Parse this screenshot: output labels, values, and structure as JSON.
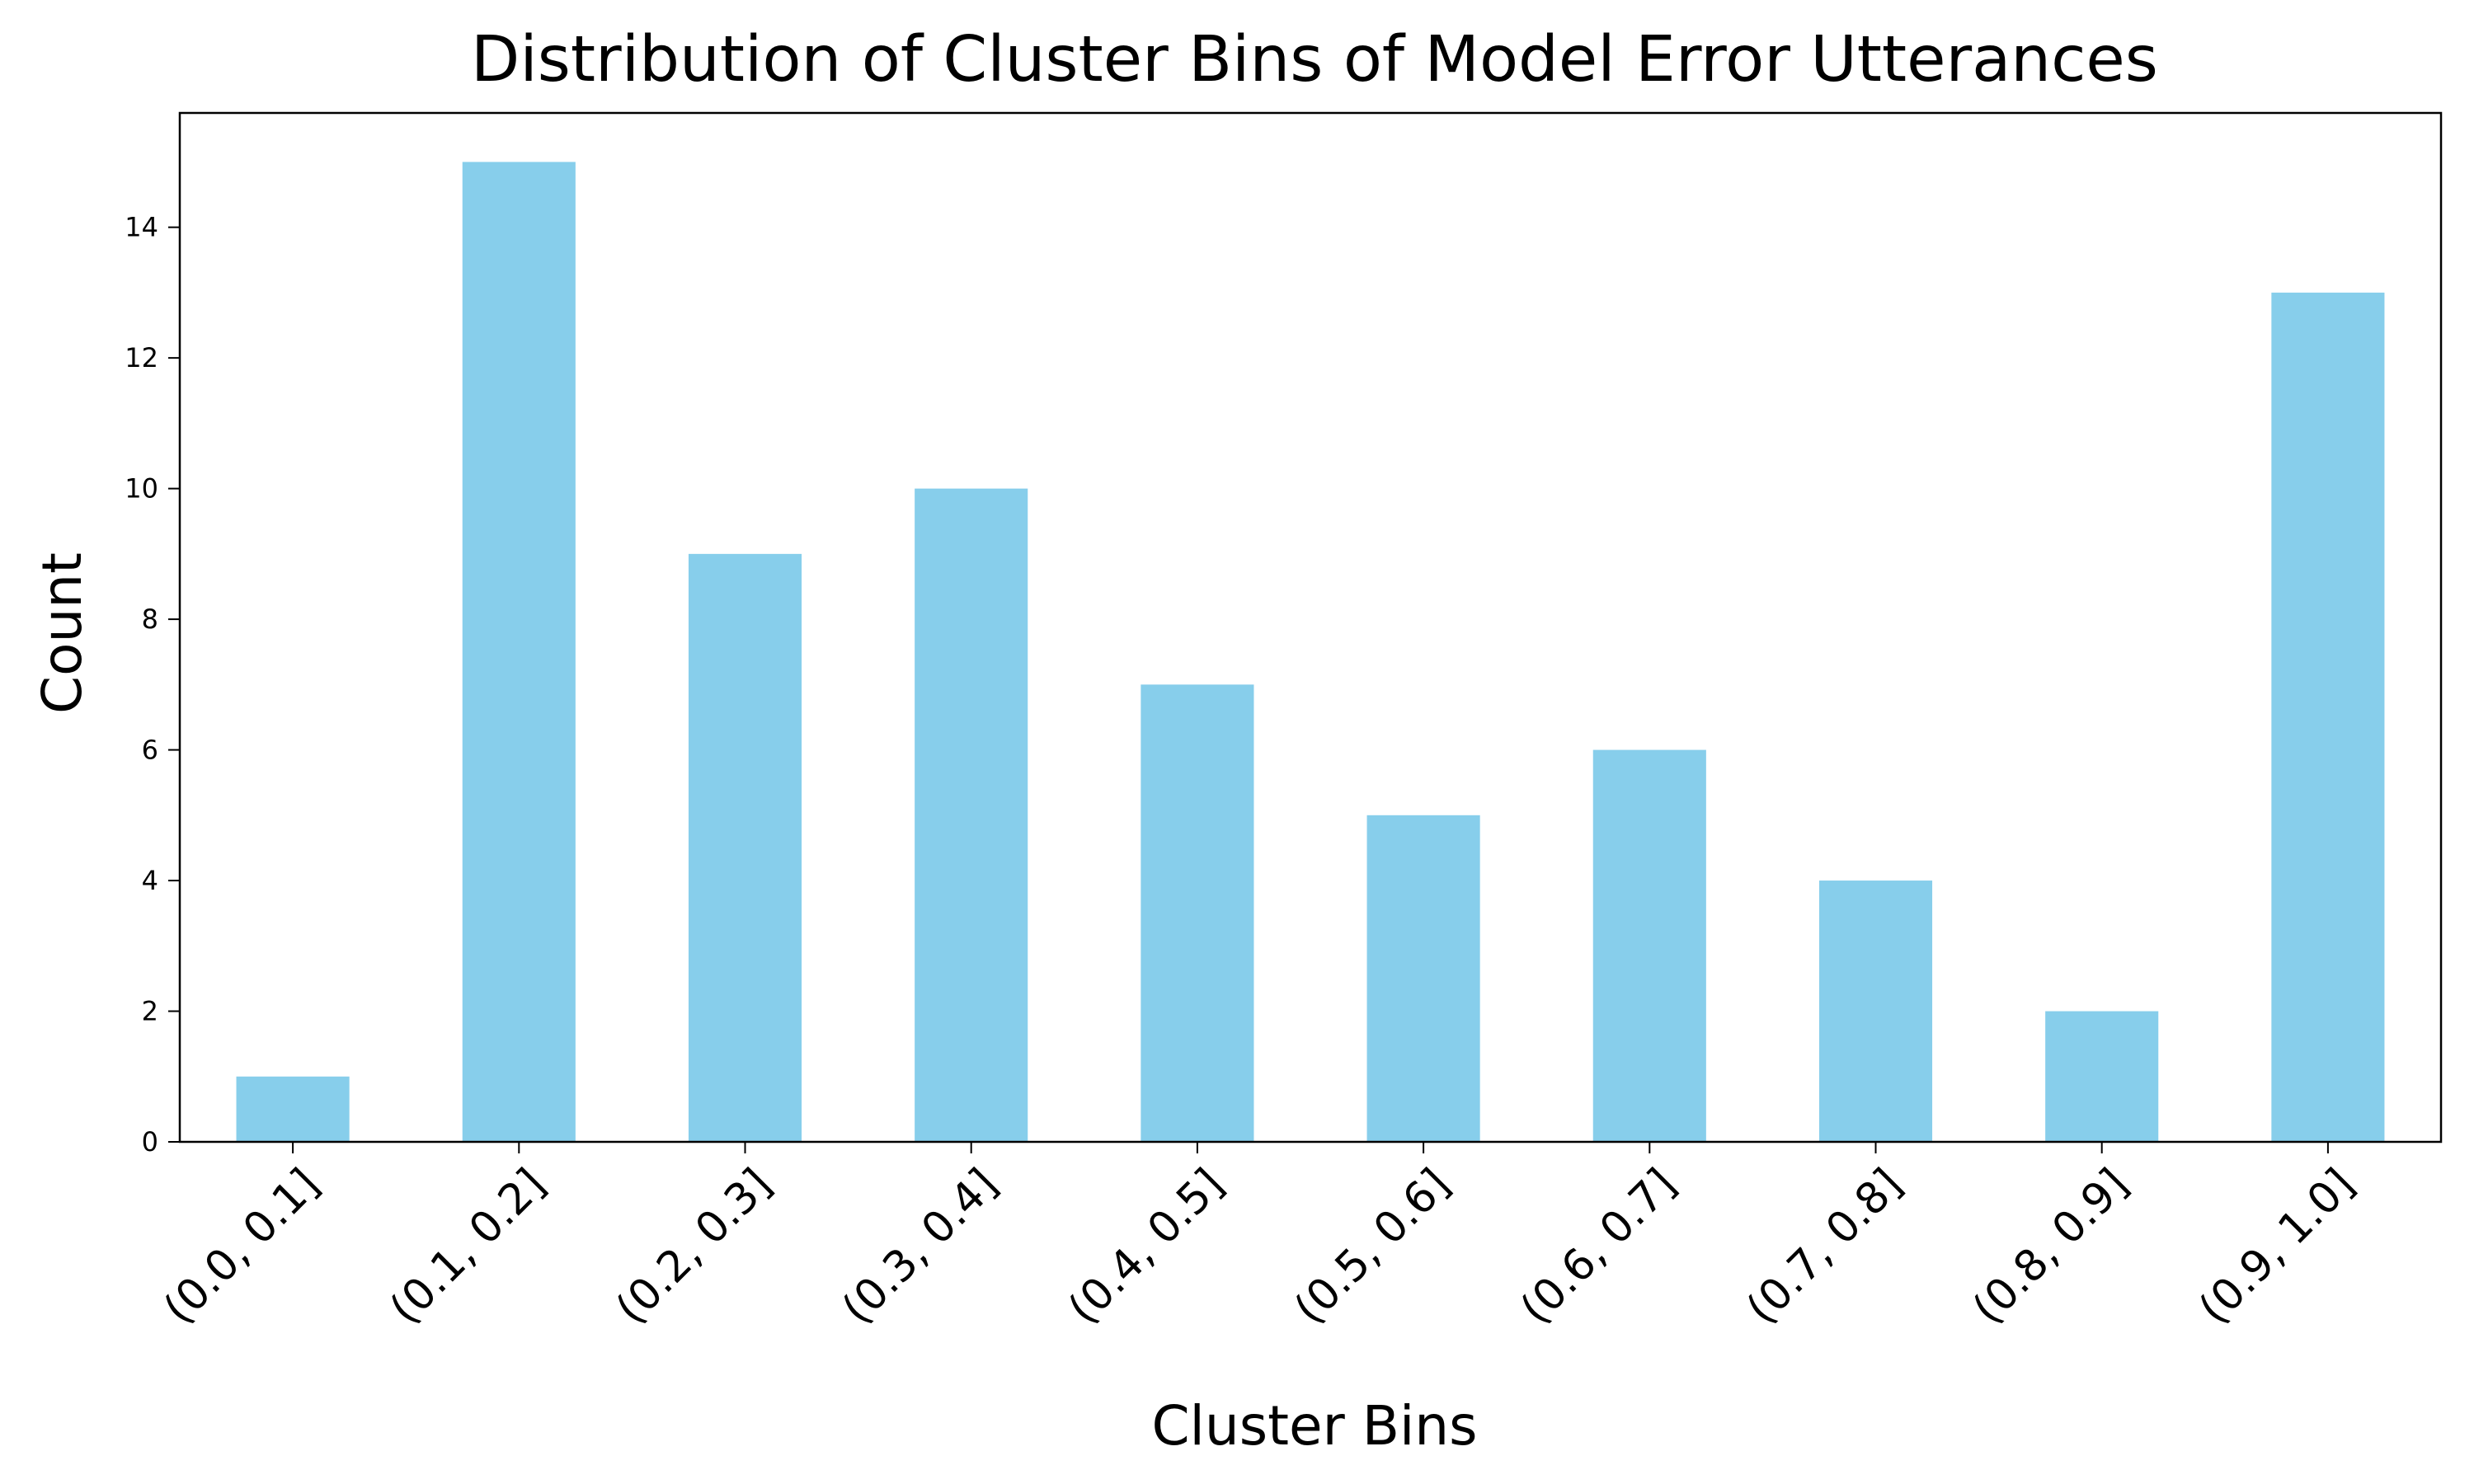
{
  "chart_data": {
    "type": "bar",
    "title": "Distribution of Cluster Bins of Model Error Utterances",
    "xlabel": "Cluster Bins",
    "ylabel": "Count",
    "categories": [
      "(0.0, 0.1]",
      "(0.1, 0.2]",
      "(0.2, 0.3]",
      "(0.3, 0.4]",
      "(0.4, 0.5]",
      "(0.5, 0.6]",
      "(0.6, 0.7]",
      "(0.7, 0.8]",
      "(0.8, 0.9]",
      "(0.9, 1.0]"
    ],
    "values": [
      1,
      15,
      9,
      10,
      7,
      5,
      6,
      4,
      2,
      13
    ],
    "ylim": [
      0,
      15.75
    ],
    "yticks": [
      0,
      2,
      4,
      6,
      8,
      10,
      12,
      14
    ],
    "bar_color": "#87CEEB",
    "grid": false,
    "legend": "none"
  }
}
